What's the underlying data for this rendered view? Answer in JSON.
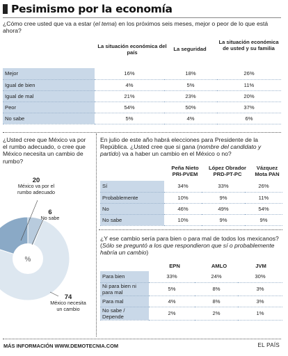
{
  "title": "Pesimismo por la economía",
  "q1": {
    "text_a": "¿Cómo cree usted que va a estar (",
    "text_em": "el tema",
    "text_b": ") en los próximos seis meses, mejor o peor  de lo que está ahora?"
  },
  "chart_data": [
    {
      "type": "table",
      "columns": [
        "La situación económica del país",
        "La seguridad",
        "La situación económica de usted y su familia"
      ],
      "rows": [
        {
          "label": "Mejor",
          "values": [
            "16%",
            "18%",
            "26%"
          ]
        },
        {
          "label": "Igual de bien",
          "values": [
            "4%",
            "5%",
            "11%"
          ]
        },
        {
          "label": "Igual de mal",
          "values": [
            "21%",
            "23%",
            "20%"
          ]
        },
        {
          "label": "Peor",
          "values": [
            "54%",
            "50%",
            "37%"
          ]
        },
        {
          "label": "No sabe",
          "values": [
            "5%",
            "4%",
            "6%"
          ]
        }
      ]
    },
    {
      "type": "pie",
      "title": "¿Usted cree que México va por el rumbo adecuado, o cree que México necesita un cambio de rumbo?",
      "center_label": "%",
      "slices": [
        {
          "name": "México va por el rumbo adecuado",
          "value": 20,
          "color": "#8aa9c6"
        },
        {
          "name": "No sabe",
          "value": 6,
          "color": "#b8cbdd"
        },
        {
          "name": "México necesita un cambio",
          "value": 74,
          "color": "#dde7f0"
        }
      ]
    },
    {
      "type": "table",
      "title": "En julio de este año habrá elecciones para Presidente de la República. ¿Usted cree que si gana (nombre del candidato y partido) va a haber un cambio en el México o no?",
      "columns": [
        "Peña Nieto PRI-PVEM",
        "López Obrador PRD-PT-PC",
        "Vázquez Mota PAN"
      ],
      "rows": [
        {
          "label": "Sí",
          "values": [
            "34%",
            "33%",
            "26%"
          ]
        },
        {
          "label": "Probablemente",
          "values": [
            "10%",
            "9%",
            "11%"
          ]
        },
        {
          "label": "No",
          "values": [
            "46%",
            "49%",
            "54%"
          ]
        },
        {
          "label": "No sabe",
          "values": [
            "10%",
            "9%",
            "9%"
          ]
        }
      ]
    },
    {
      "type": "table",
      "title": "¿Y ese cambio sería para bien o para mal de todos los mexicanos? (Sólo se preguntó a los que respondieron que sí o probablemente habría un cambio)",
      "columns": [
        "EPN",
        "AMLO",
        "JVM"
      ],
      "rows": [
        {
          "label": "Para bien",
          "values": [
            "33%",
            "24%",
            "30%"
          ]
        },
        {
          "label": "Ni para bien ni para mal",
          "values": [
            "5%",
            "8%",
            "3%"
          ]
        },
        {
          "label": "Para mal",
          "values": [
            "4%",
            "8%",
            "3%"
          ]
        },
        {
          "label": "No sabe / Depende",
          "values": [
            "2%",
            "2%",
            "1%"
          ]
        }
      ]
    }
  ],
  "pie_q": {
    "text": "¿Usted cree que México va por el rumbo adecuado, o cree que México necesita un cambio de rumbo?"
  },
  "q2": {
    "text_a": "En julio de este año habrá elecciones para Presidente de la República. ¿Usted cree que si gana (",
    "text_em": "nombre del candidato y partido",
    "text_b": ")  va a haber un cambio en el México o no?"
  },
  "q3": {
    "text_a": "¿Y ese cambio sería para bien o para mal de todos los mexicanos? (",
    "text_em": "Sólo se preguntó a los que respondieron que sí o probablemente habría un cambio",
    "text_b": ")"
  },
  "footer": {
    "left_prefix": "MÁS INFORMACIÓN ",
    "left_url": "WWW.DEMOTECNIA.COM",
    "right": "EL PAÍS"
  }
}
